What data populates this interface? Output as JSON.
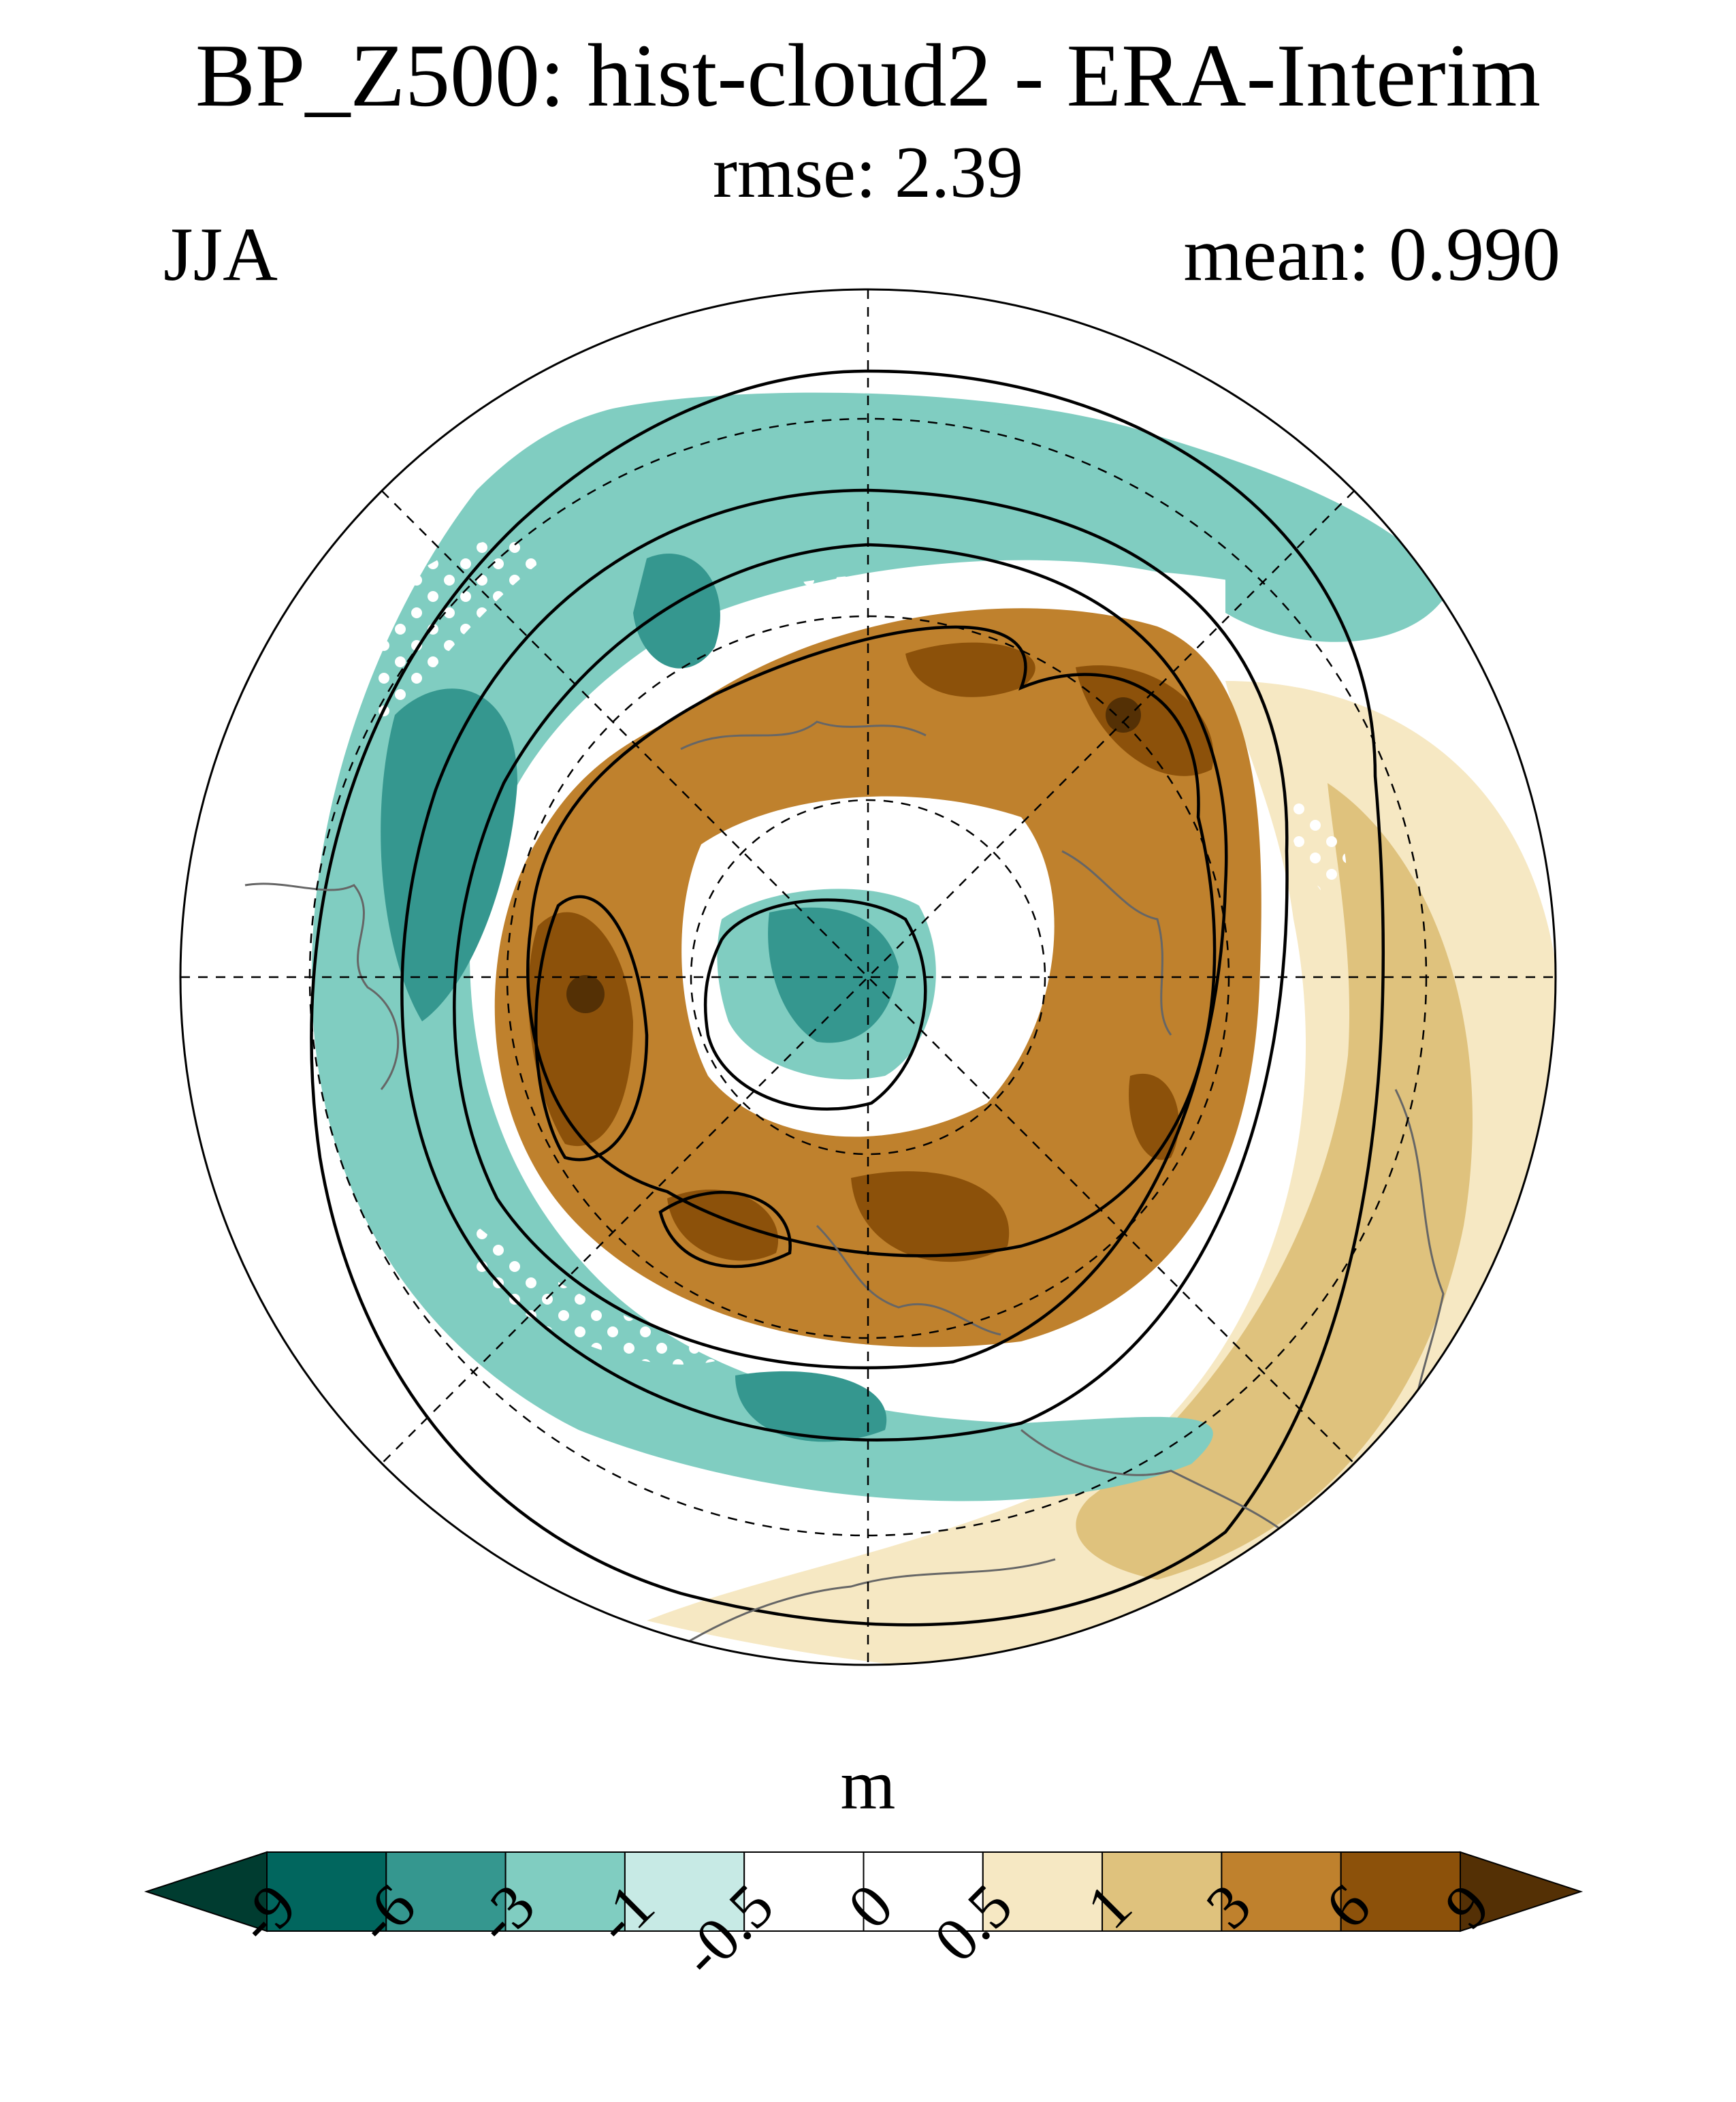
{
  "title": "BP_Z500: hist-cloud2 - ERA-Interim",
  "subtitle": "rmse: 2.39",
  "left_label": "JJA",
  "right_label": "mean: 0.990",
  "colorbar": {
    "units": "m",
    "levels": [
      "-9",
      "-6",
      "-3",
      "-1",
      "-0.5",
      "0",
      "0.5",
      "1",
      "3",
      "6",
      "9"
    ],
    "colors": [
      "#003c30",
      "#01665e",
      "#35978f",
      "#80cdc1",
      "#c7eae5",
      "#ffffff",
      "#ffffff",
      "#f6e8c3",
      "#dfc27d",
      "#bf812d",
      "#8c510a",
      "#543005"
    ]
  },
  "map": {
    "projection": "north-polar-stereographic",
    "colors": {
      "teal_deep": "#01665e",
      "teal_mid": "#35978f",
      "teal_light": "#80cdc1",
      "teal_pale": "#c7eae5",
      "tan_pale": "#f6e8c3",
      "tan_light": "#dfc27d",
      "brown_mid": "#bf812d",
      "brown_dark": "#8c510a",
      "coast": "#666666"
    }
  }
}
